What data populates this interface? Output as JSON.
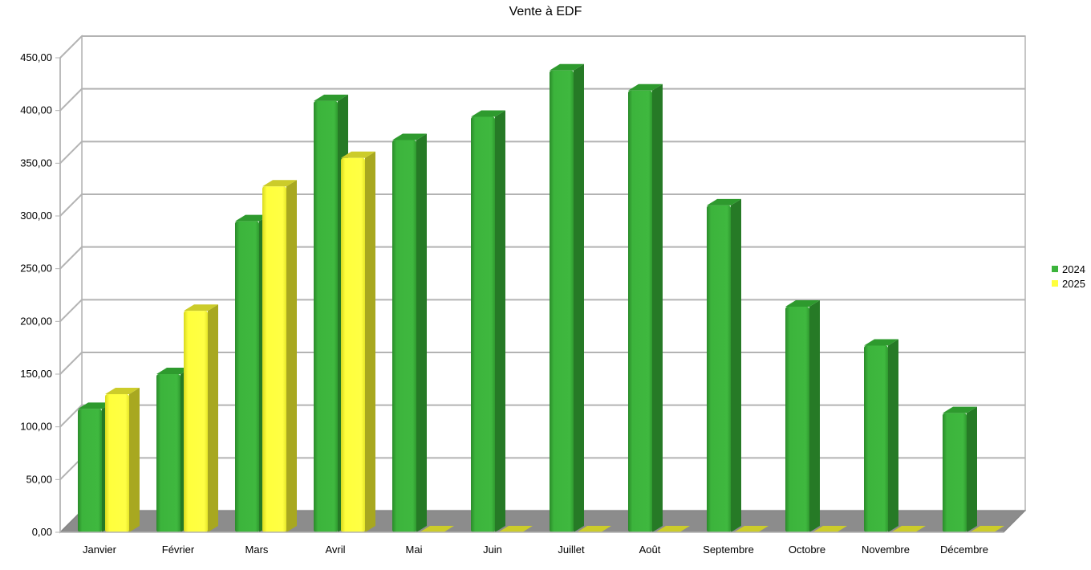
{
  "chart_data": {
    "type": "bar",
    "title": "Vente à EDF",
    "xlabel": "",
    "ylabel": "",
    "ylim": [
      0,
      450
    ],
    "yticks": [
      0,
      50,
      100,
      150,
      200,
      250,
      300,
      350,
      400,
      450
    ],
    "ytick_labels": [
      "0,00",
      "50,00",
      "100,00",
      "150,00",
      "200,00",
      "250,00",
      "300,00",
      "350,00",
      "400,00",
      "450,00"
    ],
    "categories": [
      "Janvier",
      "Février",
      "Mars",
      "Avril",
      "Mai",
      "Juin",
      "Juillet",
      "Août",
      "Septembre",
      "Octobre",
      "Novembre",
      "Décembre"
    ],
    "series": [
      {
        "name": "2024",
        "color": "#3cb43c",
        "values": [
          117,
          150,
          295,
          409,
          372,
          394,
          438,
          419,
          310,
          214,
          177,
          113
        ]
      },
      {
        "name": "2025",
        "color": "#ffff3c",
        "values": [
          131,
          210,
          328,
          355,
          0,
          0,
          0,
          0,
          0,
          0,
          0,
          0
        ]
      }
    ],
    "grid": true,
    "style_3d": true,
    "legend_position": "right"
  }
}
